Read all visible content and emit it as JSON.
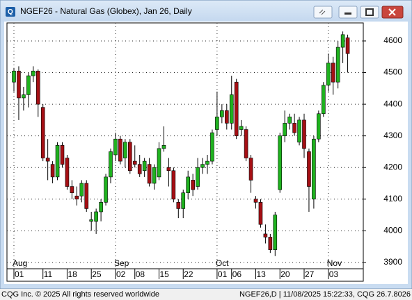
{
  "window": {
    "title": "NGEF26 - Natural Gas (Globex), Jan 26, Daily"
  },
  "chart_data": {
    "type": "candlestick",
    "categories": [
      "01",
      null,
      null,
      null,
      null,
      null,
      "11",
      null,
      null,
      null,
      null,
      "18",
      null,
      null,
      null,
      null,
      "25",
      null,
      null,
      null,
      null,
      "02",
      null,
      null,
      null,
      "08",
      null,
      null,
      null,
      null,
      "15",
      null,
      null,
      null,
      null,
      "22",
      null,
      null,
      null,
      null,
      null,
      null,
      "01",
      null,
      null,
      "06",
      null,
      null,
      null,
      null,
      "13",
      null,
      null,
      null,
      null,
      "20",
      null,
      null,
      null,
      null,
      "27",
      null,
      null,
      null,
      null,
      "03",
      null,
      null,
      null,
      null
    ],
    "month_labels": [
      "Aug",
      null,
      null,
      null,
      null,
      null,
      null,
      null,
      null,
      null,
      null,
      null,
      null,
      null,
      null,
      null,
      null,
      null,
      null,
      null,
      null,
      "Sep",
      null,
      null,
      null,
      null,
      null,
      null,
      null,
      null,
      null,
      null,
      null,
      null,
      null,
      null,
      null,
      null,
      null,
      null,
      null,
      null,
      "Oct",
      null,
      null,
      null,
      null,
      null,
      null,
      null,
      null,
      null,
      null,
      null,
      null,
      null,
      null,
      null,
      null,
      null,
      null,
      null,
      null,
      null,
      null,
      "Nov",
      null,
      null,
      null,
      null
    ],
    "open": [
      4470,
      4505,
      4420,
      4430,
      4490,
      4505,
      4390,
      4230,
      4210,
      4170,
      4270,
      4230,
      4140,
      4110,
      4110,
      4150,
      4030,
      4030,
      4060,
      4090,
      4170,
      4240,
      4290,
      4230,
      4280,
      4220,
      4210,
      4190,
      4210,
      4150,
      4170,
      4260,
      4200,
      4190,
      4090,
      4070,
      4120,
      4160,
      4140,
      4200,
      4210,
      4220,
      4320,
      4360,
      4380,
      4340,
      4470,
      4320,
      4320,
      4230,
      4100,
      4090,
      3990,
      3980,
      3940,
      4130,
      4300,
      4340,
      4340,
      4280,
      4350,
      4250,
      4100,
      4290,
      4370,
      4460,
      4530,
      4470,
      4580,
      4610
    ],
    "high": [
      4515,
      4520,
      4455,
      4500,
      4520,
      4510,
      4400,
      4290,
      4220,
      4280,
      4280,
      4240,
      4160,
      4140,
      4160,
      4160,
      4060,
      4070,
      4100,
      4180,
      4260,
      4310,
      4300,
      4290,
      4290,
      4270,
      4240,
      4230,
      4230,
      4210,
      4280,
      4330,
      4230,
      4200,
      4100,
      4130,
      4190,
      4180,
      4230,
      4230,
      4240,
      4320,
      4440,
      4400,
      4400,
      4490,
      4480,
      4350,
      4330,
      4240,
      4110,
      4100,
      4020,
      3990,
      4060,
      4310,
      4380,
      4370,
      4370,
      4360,
      4370,
      4260,
      4300,
      4380,
      4470,
      4560,
      4550,
      4600,
      4630,
      4620
    ],
    "low": [
      4440,
      4350,
      4380,
      4390,
      4470,
      4360,
      4220,
      4160,
      4150,
      4160,
      4200,
      4130,
      4100,
      4080,
      4090,
      4060,
      4000,
      3990,
      4030,
      4080,
      4150,
      4220,
      4210,
      4200,
      4180,
      4200,
      4170,
      4170,
      4140,
      4130,
      4160,
      4250,
      4140,
      4090,
      4040,
      4040,
      4100,
      4110,
      4130,
      4180,
      4180,
      4210,
      4300,
      4340,
      4320,
      4320,
      4290,
      4300,
      4220,
      4120,
      4070,
      4010,
      3960,
      3930,
      3920,
      4120,
      4280,
      4320,
      4300,
      4270,
      4230,
      4060,
      4070,
      4280,
      4360,
      4440,
      4430,
      4450,
      4530,
      4500
    ],
    "close": [
      4505,
      4420,
      4430,
      4490,
      4505,
      4400,
      4230,
      4220,
      4170,
      4270,
      4210,
      4140,
      4120,
      4100,
      4150,
      4070,
      4035,
      4060,
      4090,
      4170,
      4250,
      4290,
      4220,
      4280,
      4190,
      4210,
      4180,
      4220,
      4150,
      4200,
      4260,
      4270,
      4190,
      4100,
      4070,
      4120,
      4170,
      4130,
      4200,
      4210,
      4220,
      4310,
      4360,
      4380,
      4340,
      4430,
      4300,
      4330,
      4230,
      4160,
      4090,
      4020,
      3980,
      3940,
      4050,
      4300,
      4340,
      4360,
      4310,
      4350,
      4260,
      4140,
      4290,
      4370,
      4460,
      4530,
      4470,
      4580,
      4620,
      4560
    ],
    "up_color": "#1fb21f",
    "down_color": "#a50f14",
    "ylim": [
      3880,
      4657
    ],
    "yticks": [
      3900,
      4000,
      4100,
      4200,
      4300,
      4400,
      4500,
      4600
    ],
    "grid": true
  },
  "footer": {
    "left": "CQG Inc. © 2025 All rights reserved worldwide",
    "right": "NGEF26,D | 11/08/2025 15:22:33, CQG 26.7.8026"
  }
}
